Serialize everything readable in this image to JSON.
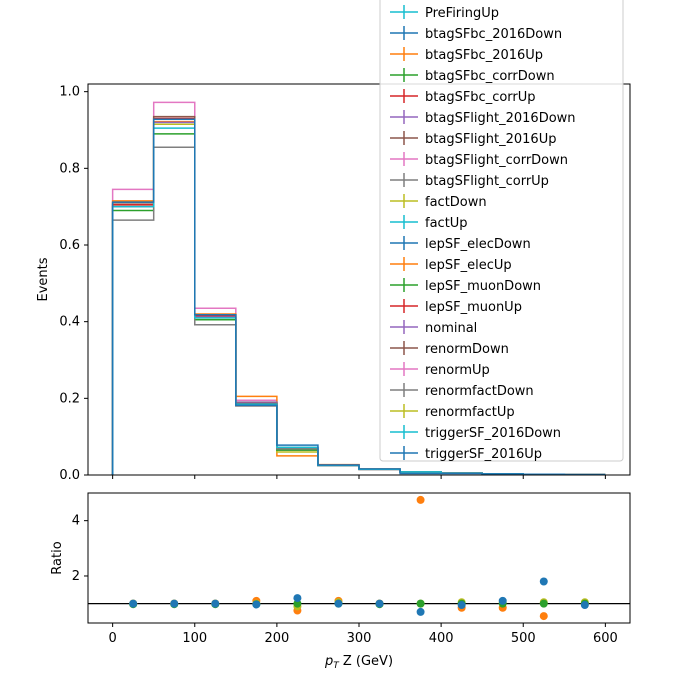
{
  "chart_data": [
    {
      "type": "step",
      "panel": "main",
      "ylabel": "Events",
      "xlim": [
        -30,
        630
      ],
      "ylim": [
        0,
        1.02
      ],
      "yticks": [
        "0.0",
        "0.2",
        "0.4",
        "0.6",
        "0.8",
        "1.0"
      ],
      "bin_edges": [
        0,
        50,
        100,
        150,
        200,
        250,
        300,
        350,
        400,
        450,
        500,
        550,
        600
      ],
      "legend_placement": "upper-right",
      "legend_entries": [
        {
          "name": "PreFiringUp",
          "color": "#17becf"
        },
        {
          "name": "btagSFbc_2016Down",
          "color": "#1f77b4"
        },
        {
          "name": "btagSFbc_2016Up",
          "color": "#ff7f0e"
        },
        {
          "name": "btagSFbc_corrDown",
          "color": "#2ca02c"
        },
        {
          "name": "btagSFbc_corrUp",
          "color": "#d62728"
        },
        {
          "name": "btagSFlight_2016Down",
          "color": "#9467bd"
        },
        {
          "name": "btagSFlight_2016Up",
          "color": "#8c564b"
        },
        {
          "name": "btagSFlight_corrDown",
          "color": "#e377c2"
        },
        {
          "name": "btagSFlight_corrUp",
          "color": "#7f7f7f"
        },
        {
          "name": "factDown",
          "color": "#bcbd22"
        },
        {
          "name": "factUp",
          "color": "#17becf"
        },
        {
          "name": "lepSF_elecDown",
          "color": "#1f77b4"
        },
        {
          "name": "lepSF_elecUp",
          "color": "#ff7f0e"
        },
        {
          "name": "lepSF_muonDown",
          "color": "#2ca02c"
        },
        {
          "name": "lepSF_muonUp",
          "color": "#d62728"
        },
        {
          "name": "nominal",
          "color": "#9467bd"
        },
        {
          "name": "renormDown",
          "color": "#8c564b"
        },
        {
          "name": "renormUp",
          "color": "#e377c2"
        },
        {
          "name": "renormfactDown",
          "color": "#7f7f7f"
        },
        {
          "name": "renormfactUp",
          "color": "#bcbd22"
        },
        {
          "name": "triggerSF_2016Down",
          "color": "#17becf"
        },
        {
          "name": "triggerSF_2016Up",
          "color": "#1f77b4"
        }
      ],
      "series": [
        {
          "color": "#e377c2",
          "values": [
            0.745,
            0.972,
            0.435,
            0.195,
            0.065,
            0.025,
            0.015,
            0.008,
            0.005,
            0.003,
            0.002,
            0.001
          ]
        },
        {
          "color": "#ff7f0e",
          "values": [
            0.715,
            0.922,
            0.42,
            0.205,
            0.05,
            0.027,
            0.016,
            0.008,
            0.005,
            0.003,
            0.002,
            0.001
          ]
        },
        {
          "color": "#bcbd22",
          "values": [
            0.7,
            0.915,
            0.41,
            0.19,
            0.06,
            0.025,
            0.015,
            0.008,
            0.005,
            0.003,
            0.002,
            0.001
          ]
        },
        {
          "color": "#2ca02c",
          "values": [
            0.69,
            0.89,
            0.405,
            0.185,
            0.065,
            0.025,
            0.015,
            0.008,
            0.005,
            0.003,
            0.002,
            0.001
          ]
        },
        {
          "color": "#d62728",
          "values": [
            0.705,
            0.93,
            0.415,
            0.188,
            0.07,
            0.026,
            0.015,
            0.008,
            0.005,
            0.003,
            0.002,
            0.001
          ]
        },
        {
          "color": "#9467bd",
          "values": [
            0.7,
            0.92,
            0.412,
            0.19,
            0.072,
            0.025,
            0.015,
            0.008,
            0.005,
            0.003,
            0.002,
            0.001
          ]
        },
        {
          "color": "#8c564b",
          "values": [
            0.71,
            0.935,
            0.418,
            0.187,
            0.07,
            0.025,
            0.015,
            0.008,
            0.005,
            0.003,
            0.002,
            0.001
          ]
        },
        {
          "color": "#7f7f7f",
          "values": [
            0.665,
            0.855,
            0.392,
            0.18,
            0.068,
            0.024,
            0.014,
            0.007,
            0.005,
            0.003,
            0.002,
            0.001
          ]
        },
        {
          "color": "#17becf",
          "values": [
            0.7,
            0.905,
            0.41,
            0.185,
            0.072,
            0.025,
            0.015,
            0.008,
            0.005,
            0.003,
            0.002,
            0.001
          ]
        },
        {
          "color": "#1f77b4",
          "values": [
            0.712,
            0.928,
            0.418,
            0.182,
            0.078,
            0.026,
            0.016,
            0.004,
            0.004,
            0.003,
            0.002,
            0.001
          ]
        }
      ]
    },
    {
      "type": "scatter",
      "panel": "ratio",
      "xlabel": "p_T Z (GeV)",
      "ylabel": "Ratio",
      "xlim": [
        -30,
        630
      ],
      "ylim": [
        0.3,
        5.0
      ],
      "xticks": [
        "0",
        "100",
        "200",
        "300",
        "400",
        "500",
        "600"
      ],
      "yticks": [
        "2",
        "4"
      ],
      "reference_line": 1.0,
      "x": [
        25,
        75,
        125,
        175,
        225,
        275,
        325,
        375,
        425,
        475,
        525,
        575
      ],
      "series": [
        {
          "color": "#ff7f0e",
          "values": [
            1.0,
            1.0,
            1.0,
            1.1,
            0.75,
            1.1,
            1.0,
            4.75,
            0.85,
            0.85,
            0.55,
            1.0
          ]
        },
        {
          "color": "#bcbd22",
          "values": [
            1.0,
            1.0,
            1.0,
            1.0,
            0.9,
            1.05,
            1.0,
            1.0,
            1.05,
            1.05,
            1.05,
            1.05
          ]
        },
        {
          "color": "#2ca02c",
          "values": [
            0.98,
            0.98,
            0.98,
            0.98,
            1.0,
            1.0,
            0.98,
            1.0,
            1.0,
            1.0,
            1.0,
            1.0
          ]
        },
        {
          "color": "#1f77b4",
          "values": [
            1.0,
            1.0,
            1.0,
            0.97,
            1.2,
            1.0,
            1.0,
            0.7,
            0.95,
            1.1,
            1.8,
            0.95
          ]
        }
      ]
    }
  ]
}
